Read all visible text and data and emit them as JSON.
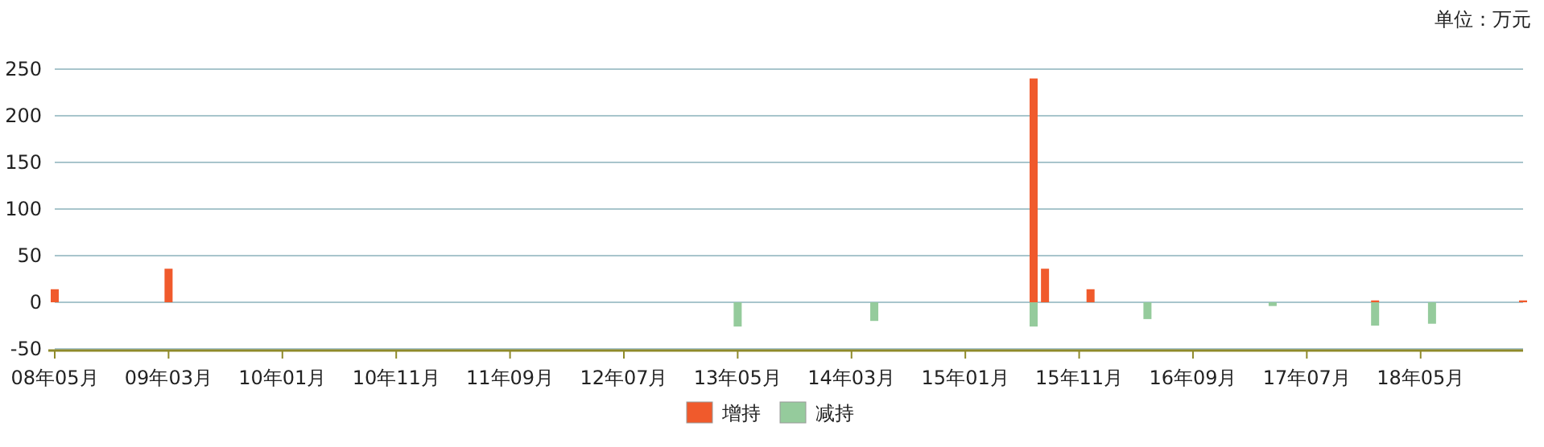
{
  "chart_data": {
    "type": "bar",
    "annotations": [
      "单位：万元"
    ],
    "series": [
      {
        "name": "增持",
        "color": "#f05a2c",
        "x": [
          "2008-05",
          "2009-03",
          "2015-07",
          "2015-08",
          "2015-12",
          "2018-01",
          "2019-02"
        ],
        "values": [
          14,
          36,
          240,
          36,
          14,
          2,
          2
        ]
      },
      {
        "name": "减持",
        "color": "#95cb9c",
        "x": [
          "2013-05",
          "2014-05",
          "2015-07",
          "2016-05",
          "2017-04",
          "2018-01",
          "2018-06"
        ],
        "values": [
          -26,
          -20,
          -26,
          -18,
          -4,
          -25,
          -23
        ]
      }
    ],
    "xlim": [
      "2008-05",
      "2019-02"
    ],
    "xticks": [
      {
        "value": "2008-05",
        "label": "08年05月"
      },
      {
        "value": "2009-03",
        "label": "09年03月"
      },
      {
        "value": "2010-01",
        "label": "10年01月"
      },
      {
        "value": "2010-11",
        "label": "10年11月"
      },
      {
        "value": "2011-09",
        "label": "11年09月"
      },
      {
        "value": "2012-07",
        "label": "12年07月"
      },
      {
        "value": "2013-05",
        "label": "13年05月"
      },
      {
        "value": "2014-03",
        "label": "14年03月"
      },
      {
        "value": "2015-01",
        "label": "15年01月"
      },
      {
        "value": "2015-11",
        "label": "15年11月"
      },
      {
        "value": "2016-09",
        "label": "16年09月"
      },
      {
        "value": "2017-07",
        "label": "17年07月"
      },
      {
        "value": "2018-05",
        "label": "18年05月"
      }
    ],
    "ylim": [
      -50,
      250
    ],
    "yticks": [
      -50,
      0,
      50,
      100,
      150,
      200,
      250
    ],
    "grid": "y",
    "legend": "bottom"
  }
}
